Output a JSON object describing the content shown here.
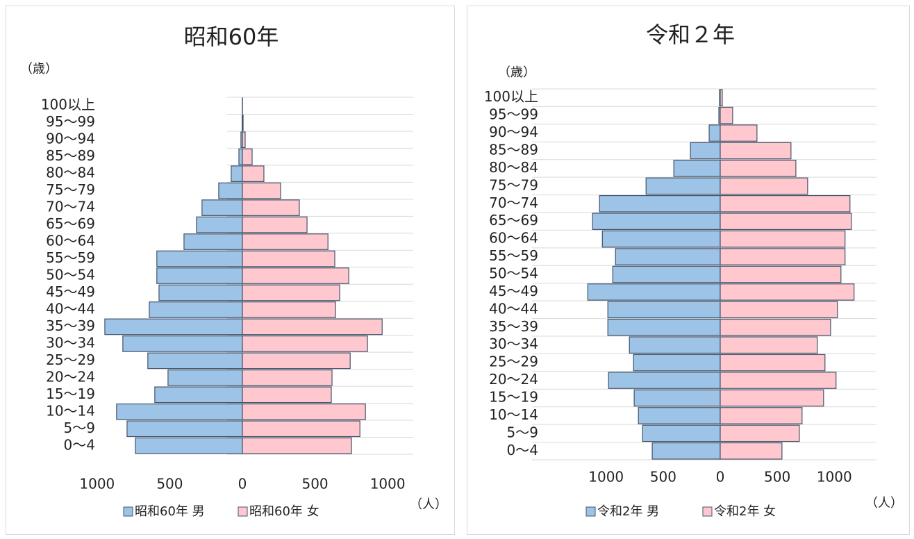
{
  "chart_data": [
    {
      "type": "pyramid",
      "title": "昭和60年",
      "y_label": "（歳）",
      "x_label": "（人）",
      "categories": [
        "0～4",
        "5～9",
        "10～14",
        "15～19",
        "20～24",
        "25～29",
        "30～34",
        "35～39",
        "40～44",
        "45～49",
        "50～54",
        "55～59",
        "60～64",
        "65～69",
        "70～74",
        "75～79",
        "80～84",
        "85～89",
        "90～94",
        "95～99",
        "100以上"
      ],
      "series": [
        {
          "name": "昭和60年 男",
          "color": "#9dc3e6",
          "values": [
            -737,
            -794,
            -866,
            -603,
            -512,
            -651,
            -823,
            -947,
            -641,
            -574,
            -589,
            -589,
            -402,
            -316,
            -278,
            -163,
            -77,
            -24,
            -10,
            -2,
            0
          ]
        },
        {
          "name": "昭和60年 女",
          "color": "#ffc7ce",
          "values": [
            751,
            809,
            847,
            612,
            617,
            742,
            861,
            962,
            641,
            670,
            732,
            636,
            589,
            445,
            392,
            263,
            148,
            67,
            19,
            5,
            1
          ]
        }
      ],
      "xlim": [
        -1200,
        1200
      ],
      "xticks": [
        {
          "value": -1000,
          "label": "1000"
        },
        {
          "value": -500,
          "label": "500"
        },
        0,
        500,
        1000
      ]
    },
    {
      "type": "pyramid",
      "title": "令和２年",
      "y_label": "（歳）",
      "x_label": "（人）",
      "categories": [
        "0～4",
        "5～9",
        "10～14",
        "15～19",
        "20～24",
        "25～29",
        "30～34",
        "35～39",
        "40～44",
        "45～49",
        "50～54",
        "55～59",
        "60～64",
        "65～69",
        "70～74",
        "75～79",
        "80～84",
        "85～89",
        "90～94",
        "95～99",
        "100以上"
      ],
      "series": [
        {
          "name": "令和2年 男",
          "color": "#9dc3e6",
          "values": [
            -596,
            -681,
            -717,
            -754,
            -979,
            -760,
            -796,
            -985,
            -985,
            -1161,
            -942,
            -918,
            -1033,
            -1119,
            -1058,
            -650,
            -407,
            -261,
            -97,
            -12,
            -6
          ]
        },
        {
          "name": "令和2年 女",
          "color": "#ffc7ce",
          "values": [
            541,
            693,
            717,
            906,
            1015,
            918,
            851,
            967,
            1027,
            1173,
            1058,
            1094,
            1094,
            1149,
            1137,
            766,
            663,
            620,
            322,
            109,
            18
          ]
        }
      ],
      "xlim": [
        -1400,
        1400
      ],
      "xticks": [
        {
          "value": -1000,
          "label": "1000"
        },
        {
          "value": -500,
          "label": "500"
        },
        0,
        500,
        1000
      ]
    }
  ]
}
